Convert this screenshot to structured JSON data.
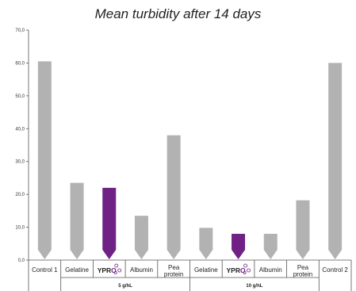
{
  "chart_data": {
    "type": "bar",
    "title": "Mean turbidity after 14 days",
    "xlabel": "",
    "ylabel": "",
    "ylim": [
      0,
      70
    ],
    "yticks": [
      "0,0",
      "10,0",
      "20,0",
      "30,0",
      "40,0",
      "50,0",
      "60,0",
      "70,0"
    ],
    "categories": [
      "Control 1",
      "Gelatine",
      "YPRO",
      "Albumin",
      "Pea protein",
      "Gelatine",
      "YPRO",
      "Albumin",
      "Pea protein",
      "Control 2"
    ],
    "values": [
      60.5,
      23.5,
      22,
      13.5,
      38,
      9.8,
      8,
      8,
      18.2,
      60
    ],
    "groups": [
      {
        "label": "5 g/hL",
        "start": 1,
        "end": 4
      },
      {
        "label": "10 g/hL",
        "start": 5,
        "end": 8
      }
    ],
    "brand_logo_index": [
      2,
      6
    ],
    "grid": false,
    "legend": "none"
  },
  "colors": {
    "bar": "#b2b2b2",
    "highlight": "#6f2185",
    "axis": "#555555"
  }
}
